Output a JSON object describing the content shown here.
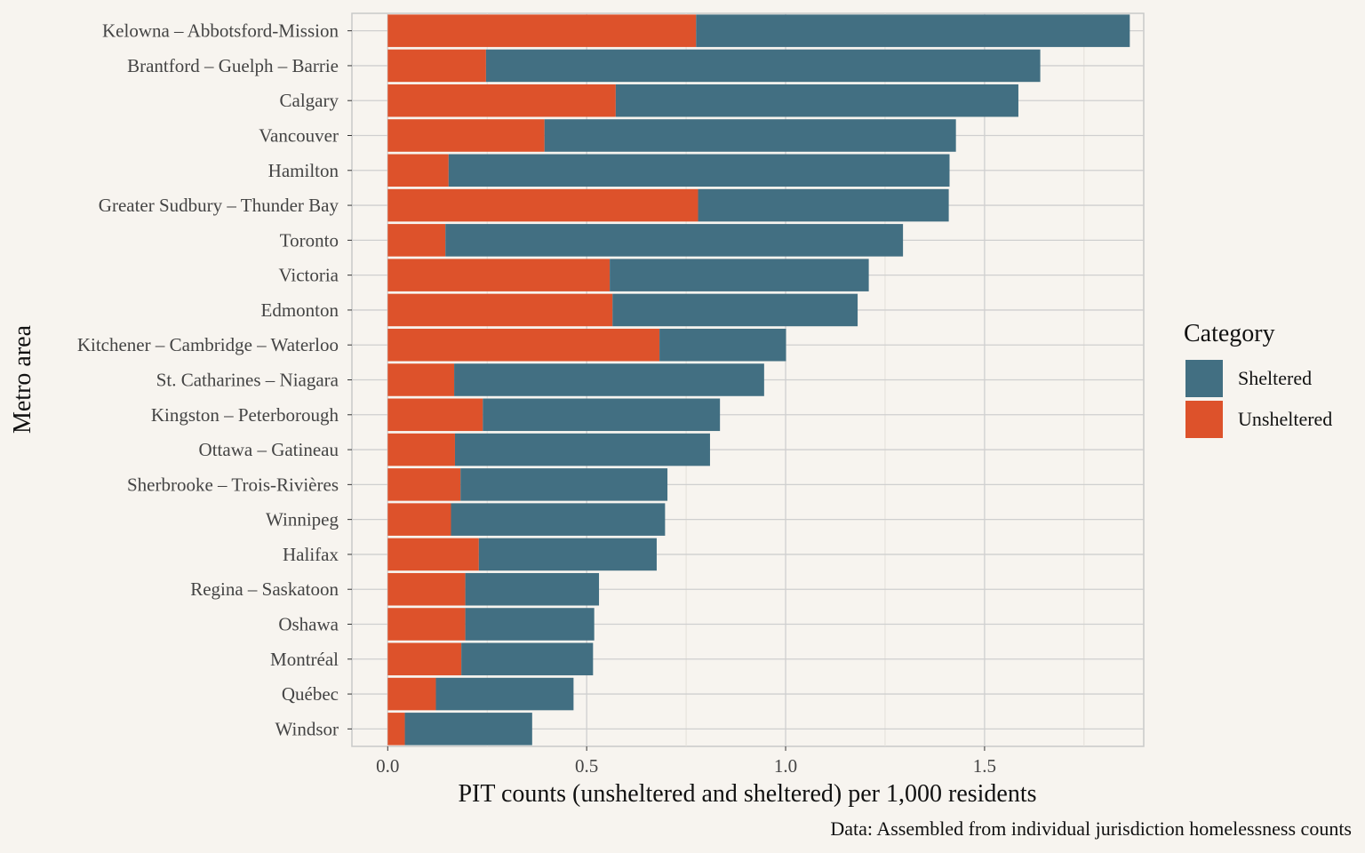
{
  "chart_data": {
    "type": "bar",
    "orientation": "horizontal",
    "stacked": true,
    "title": "",
    "xlabel": "PIT counts (unsheltered and sheltered) per 1,000 residents",
    "ylabel": "Metro area",
    "caption": "Data: Assembled from individual jurisdiction homelessness counts",
    "xlim": [
      -0.09,
      1.9
    ],
    "x_ticks": [
      0,
      0.5,
      1,
      1.5
    ],
    "x_tick_labels": [
      "0.0",
      "0.5",
      "1.0",
      "1.5"
    ],
    "grid": true,
    "legend": {
      "title": "Category",
      "position": "right",
      "entries": [
        {
          "name": "Sheltered",
          "color": "#426f82"
        },
        {
          "name": "Unsheltered",
          "color": "#dd522b"
        }
      ]
    },
    "categories": [
      "Kelowna – Abbotsford-Mission",
      "Brantford – Guelph – Barrie",
      "Calgary",
      "Vancouver",
      "Hamilton",
      "Greater Sudbury – Thunder Bay",
      "Toronto",
      "Victoria",
      "Edmonton",
      "Kitchener – Cambridge – Waterloo",
      "St. Catharines – Niagara",
      "Kingston – Peterborough",
      "Ottawa – Gatineau",
      "Sherbrooke – Trois-Rivières",
      "Winnipeg",
      "Halifax",
      "Regina – Saskatoon",
      "Oshawa",
      "Montréal",
      "Québec",
      "Windsor"
    ],
    "series": [
      {
        "name": "Unsheltered",
        "color": "#dd522b",
        "values": [
          0.775,
          0.247,
          0.573,
          0.394,
          0.153,
          0.78,
          0.145,
          0.558,
          0.565,
          0.683,
          0.167,
          0.239,
          0.169,
          0.183,
          0.159,
          0.229,
          0.195,
          0.195,
          0.185,
          0.121,
          0.043
        ]
      },
      {
        "name": "Sheltered",
        "color": "#426f82",
        "values": [
          1.09,
          1.393,
          1.012,
          1.034,
          1.259,
          0.63,
          1.15,
          0.651,
          0.616,
          0.318,
          0.779,
          0.596,
          0.641,
          0.52,
          0.538,
          0.447,
          0.336,
          0.324,
          0.331,
          0.346,
          0.32
        ]
      }
    ]
  }
}
